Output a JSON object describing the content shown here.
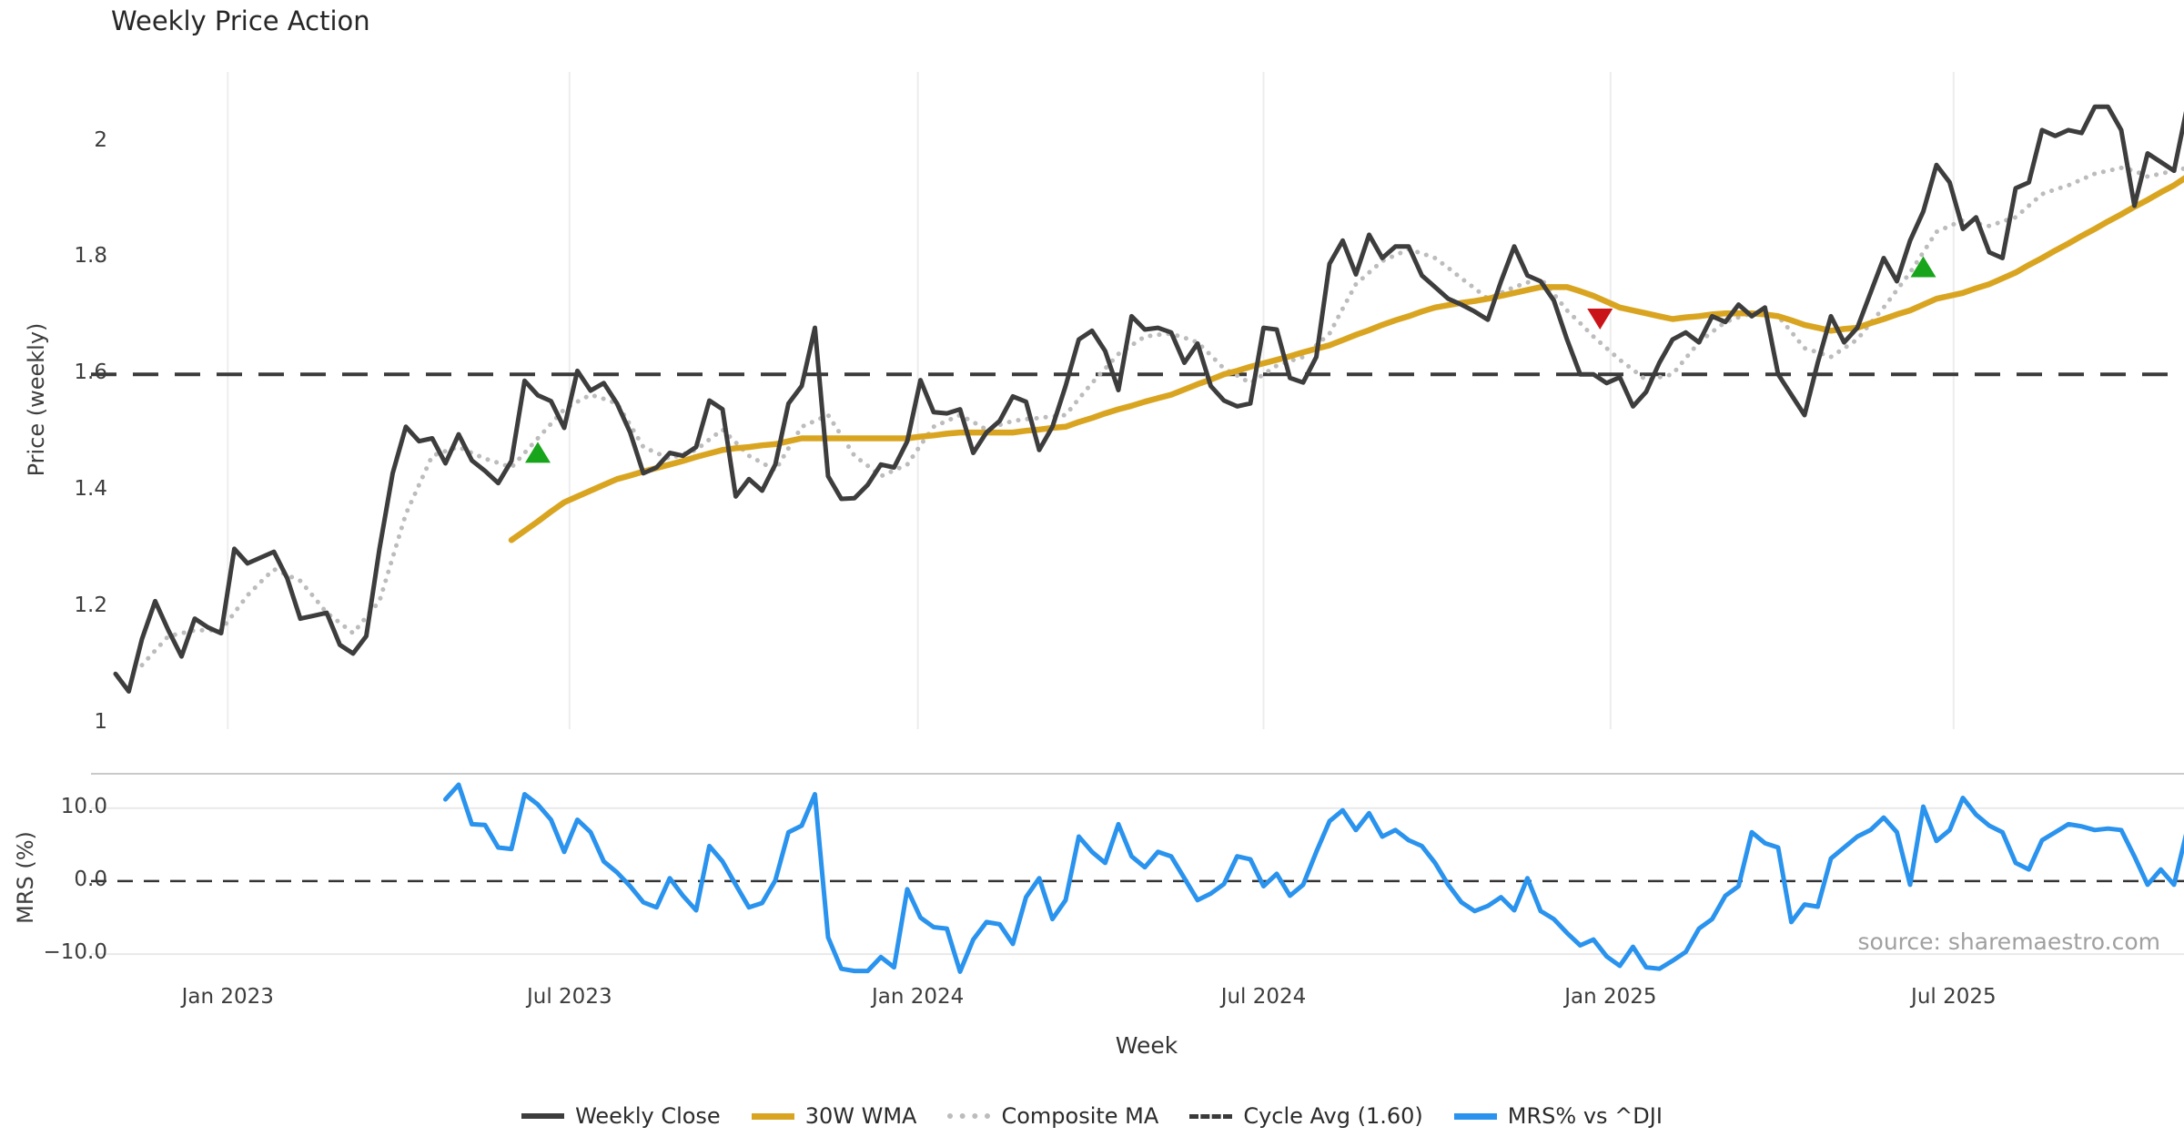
{
  "title": "Weekly Price Action",
  "source_note": "source: sharemaestro.com",
  "colors": {
    "weekly_close": "#3d3d3d",
    "wma_30": "#d9a521",
    "composite_ma": "#bcbcbc",
    "cycle_avg": "#3a3a3a",
    "mrs": "#2a93ee",
    "buy_marker": "#18a51b",
    "sell_marker": "#c9151a",
    "grid": "#ededed",
    "mrs_grid": "#e9e9e9",
    "panel_border": "#c9c9c9",
    "source_text": "#a0a0a0"
  },
  "legend": {
    "items": [
      {
        "label": "Weekly Close",
        "swatch": "solid-dark"
      },
      {
        "label": "30W WMA",
        "swatch": "solid-gold"
      },
      {
        "label": "Composite MA",
        "swatch": "dotted-gray"
      },
      {
        "label": "Cycle Avg (1.60)",
        "swatch": "dashed-dark"
      },
      {
        "label": "MRS% vs ^DJI",
        "swatch": "solid-blue"
      }
    ]
  },
  "chart_data": {
    "type": "line",
    "title": "Weekly Price Action",
    "x_axis": {
      "label": "Week",
      "tick_labels": [
        "Jan 2023",
        "Jul 2023",
        "Jan 2024",
        "Jul 2024",
        "Jan 2025",
        "Jul 2025"
      ],
      "tick_weeks": [
        8.5,
        34.4,
        60.8,
        87.0,
        113.3,
        139.3
      ],
      "weeks_total": 157
    },
    "price_panel": {
      "ylabel": "Price (weekly)",
      "ylim": [
        0.99,
        2.12
      ],
      "ytick_values": [
        2,
        1.8,
        1.6,
        1.4,
        1.2,
        1
      ],
      "ytick_labels": [
        "2",
        "1.8",
        "1.6",
        "1.4",
        "1.2",
        "1"
      ],
      "cycle_avg_value": 1.6,
      "grid": "vertical-only",
      "series": [
        {
          "name": "Weekly Close",
          "color": "#3d3d3d",
          "style": "solid",
          "width": 5,
          "start_week": 0,
          "values": [
            1.085,
            1.055,
            1.145,
            1.21,
            1.16,
            1.115,
            1.18,
            1.165,
            1.155,
            1.3,
            1.275,
            1.285,
            1.295,
            1.25,
            1.18,
            1.185,
            1.19,
            1.135,
            1.12,
            1.15,
            1.3,
            1.43,
            1.51,
            1.485,
            1.49,
            1.447,
            1.497,
            1.452,
            1.434,
            1.413,
            1.451,
            1.589,
            1.564,
            1.554,
            1.508,
            1.606,
            1.572,
            1.585,
            1.55,
            1.5,
            1.43,
            1.44,
            1.465,
            1.46,
            1.475,
            1.555,
            1.54,
            1.39,
            1.42,
            1.4,
            1.445,
            1.55,
            1.58,
            1.68,
            1.425,
            1.386,
            1.387,
            1.41,
            1.445,
            1.44,
            1.485,
            1.59,
            1.535,
            1.533,
            1.54,
            1.465,
            1.5,
            1.52,
            1.562,
            1.553,
            1.47,
            1.51,
            1.58,
            1.66,
            1.675,
            1.64,
            1.573,
            1.7,
            1.677,
            1.68,
            1.672,
            1.62,
            1.653,
            1.58,
            1.555,
            1.545,
            1.55,
            1.68,
            1.677,
            1.594,
            1.586,
            1.63,
            1.79,
            1.83,
            1.772,
            1.84,
            1.8,
            1.82,
            1.82,
            1.77,
            1.75,
            1.73,
            1.72,
            1.708,
            1.694,
            1.76,
            1.82,
            1.77,
            1.76,
            1.727,
            1.66,
            1.6,
            1.6,
            1.585,
            1.595,
            1.545,
            1.57,
            1.62,
            1.66,
            1.672,
            1.655,
            1.7,
            1.69,
            1.72,
            1.7,
            1.715,
            1.6,
            1.565,
            1.53,
            1.62,
            1.7,
            1.655,
            1.68,
            1.74,
            1.8,
            1.76,
            1.83,
            1.88,
            1.96,
            1.93,
            1.85,
            1.87,
            1.81,
            1.8,
            1.92,
            1.93,
            2.02,
            2.01,
            2.02,
            2.015,
            2.06,
            2.06,
            2.02,
            1.89,
            1.98,
            1.965,
            1.95,
            2.06
          ]
        },
        {
          "name": "30W WMA",
          "color": "#d9a521",
          "style": "solid",
          "width": 6.5,
          "start_week": 30,
          "values": [
            1.315,
            1.331,
            1.347,
            1.364,
            1.38,
            1.39,
            1.4,
            1.41,
            1.42,
            1.426,
            1.433,
            1.439,
            1.445,
            1.451,
            1.458,
            1.464,
            1.47,
            1.473,
            1.475,
            1.478,
            1.48,
            1.485,
            1.49,
            1.49,
            1.49,
            1.49,
            1.49,
            1.49,
            1.49,
            1.49,
            1.49,
            1.493,
            1.495,
            1.498,
            1.5,
            1.5,
            1.5,
            1.5,
            1.5,
            1.503,
            1.505,
            1.508,
            1.51,
            1.518,
            1.525,
            1.533,
            1.54,
            1.546,
            1.553,
            1.559,
            1.565,
            1.574,
            1.583,
            1.591,
            1.6,
            1.606,
            1.613,
            1.619,
            1.625,
            1.631,
            1.638,
            1.644,
            1.65,
            1.659,
            1.668,
            1.676,
            1.685,
            1.693,
            1.7,
            1.708,
            1.715,
            1.719,
            1.723,
            1.726,
            1.73,
            1.735,
            1.74,
            1.745,
            1.75,
            1.75,
            1.75,
            1.743,
            1.735,
            1.725,
            1.715,
            1.71,
            1.705,
            1.7,
            1.695,
            1.698,
            1.7,
            1.703,
            1.705,
            1.705,
            1.705,
            1.703,
            1.7,
            1.693,
            1.685,
            1.68,
            1.675,
            1.678,
            1.68,
            1.688,
            1.695,
            1.703,
            1.71,
            1.72,
            1.73,
            1.735,
            1.74,
            1.748,
            1.755,
            1.765,
            1.775,
            1.788,
            1.8,
            1.813,
            1.825,
            1.838,
            1.85,
            1.863,
            1.875,
            1.888,
            1.9,
            1.913,
            1.925,
            1.94
          ]
        },
        {
          "name": "Composite MA",
          "color": "#bcbcbc",
          "style": "dotted",
          "width": 5,
          "start_week": 2,
          "values": [
            1.1,
            1.125,
            1.15,
            1.155,
            1.16,
            1.16,
            1.16,
            1.19,
            1.22,
            1.243,
            1.265,
            1.255,
            1.245,
            1.218,
            1.19,
            1.173,
            1.155,
            1.183,
            1.21,
            1.285,
            1.36,
            1.41,
            1.46,
            1.468,
            1.475,
            1.465,
            1.455,
            1.448,
            1.44,
            1.465,
            1.49,
            1.515,
            1.54,
            1.553,
            1.565,
            1.558,
            1.55,
            1.513,
            1.475,
            1.465,
            1.455,
            1.463,
            1.47,
            1.488,
            1.505,
            1.483,
            1.46,
            1.448,
            1.435,
            1.473,
            1.51,
            1.52,
            1.53,
            1.495,
            1.46,
            1.443,
            1.425,
            1.435,
            1.445,
            1.478,
            1.51,
            1.52,
            1.53,
            1.518,
            1.505,
            1.513,
            1.52,
            1.523,
            1.525,
            1.528,
            1.53,
            1.558,
            1.585,
            1.61,
            1.635,
            1.65,
            1.665,
            1.668,
            1.67,
            1.663,
            1.655,
            1.633,
            1.61,
            1.598,
            1.585,
            1.6,
            1.615,
            1.623,
            1.63,
            1.65,
            1.67,
            1.713,
            1.755,
            1.775,
            1.795,
            1.805,
            1.815,
            1.808,
            1.8,
            1.783,
            1.765,
            1.748,
            1.73,
            1.74,
            1.75,
            1.758,
            1.765,
            1.738,
            1.71,
            1.688,
            1.665,
            1.645,
            1.625,
            1.608,
            1.59,
            1.595,
            1.6,
            1.628,
            1.655,
            1.673,
            1.69,
            1.698,
            1.705,
            1.703,
            1.7,
            1.673,
            1.645,
            1.638,
            1.63,
            1.645,
            1.66,
            1.688,
            1.715,
            1.745,
            1.775,
            1.81,
            1.845,
            1.855,
            1.865,
            1.86,
            1.855,
            1.863,
            1.87,
            1.89,
            1.91,
            1.918,
            1.925,
            1.935,
            1.945,
            1.95,
            1.955,
            1.95,
            1.94,
            1.945,
            1.95,
            1.955
          ]
        }
      ],
      "markers": [
        {
          "type": "buy",
          "week": 32,
          "value": 1.466
        },
        {
          "type": "sell",
          "week": 112.5,
          "value": 1.695
        },
        {
          "type": "buy",
          "week": 137,
          "value": 1.785
        }
      ]
    },
    "mrs_panel": {
      "ylabel": "MRS (%)",
      "ylim": [
        -12.1,
        14.7
      ],
      "ytick_values": [
        10,
        0,
        -10
      ],
      "ytick_labels": [
        "10.0",
        "0.0",
        "−10.0"
      ],
      "zero_line_value": 0,
      "series": [
        {
          "name": "MRS% vs ^DJI",
          "color": "#2a93ee",
          "style": "solid",
          "width": 5,
          "start_week": 25,
          "values": [
            11.2,
            13.2,
            7.8,
            7.7,
            4.6,
            4.4,
            11.9,
            10.5,
            8.4,
            4.0,
            8.4,
            6.7,
            2.7,
            1.2,
            -0.7,
            -2.9,
            -3.6,
            0.4,
            -2.0,
            -4.0,
            4.8,
            2.7,
            -0.5,
            -3.6,
            -3.0,
            0.1,
            6.7,
            7.6,
            11.9,
            -7.7,
            -12.0,
            -12.3,
            -12.3,
            -10.4,
            -11.8,
            -1.1,
            -5.0,
            -6.3,
            -6.5,
            -12.4,
            -8.0,
            -5.6,
            -5.9,
            -8.6,
            -2.2,
            0.4,
            -5.2,
            -2.6,
            6.1,
            4.0,
            2.5,
            7.8,
            3.4,
            1.9,
            4.0,
            3.4,
            0.4,
            -2.6,
            -1.7,
            -0.4,
            3.4,
            3.0,
            -0.7,
            1.0,
            -2.0,
            -0.5,
            4.0,
            8.2,
            9.7,
            7.0,
            9.3,
            6.1,
            7.0,
            5.6,
            4.8,
            2.5,
            -0.5,
            -2.9,
            -4.1,
            -3.4,
            -2.2,
            -4.0,
            0.4,
            -4.1,
            -5.2,
            -7.1,
            -8.8,
            -8.0,
            -10.3,
            -11.6,
            -9.0,
            -11.8,
            -12.0,
            -10.9,
            -9.7,
            -6.5,
            -5.2,
            -2.0,
            -0.7,
            6.7,
            5.2,
            4.6,
            -5.6,
            -3.2,
            -3.5,
            3.1,
            4.6,
            6.1,
            7.0,
            8.7,
            6.7,
            -0.5,
            10.2,
            5.5,
            7.0,
            11.4,
            9.1,
            7.6,
            6.7,
            2.5,
            1.6,
            5.6,
            6.7,
            7.8,
            7.5,
            7.0,
            7.2,
            7.0,
            3.4,
            -0.5,
            1.6,
            -0.5,
            7.0,
            3.4,
            4.6
          ]
        }
      ]
    }
  }
}
